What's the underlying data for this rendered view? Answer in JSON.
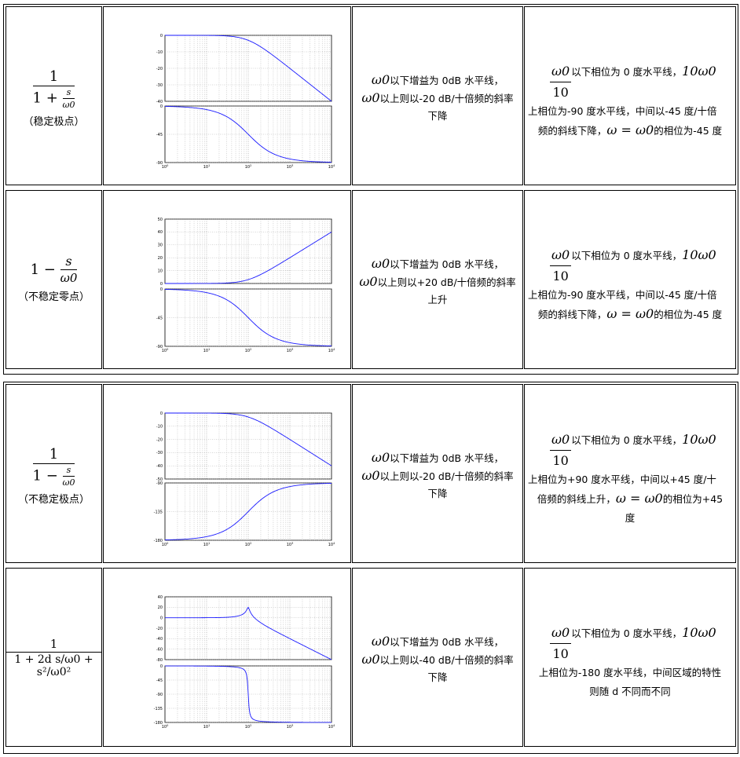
{
  "rows": [
    {
      "tf_num": "1",
      "tf_den_prefix": "1 +",
      "tf_den_s": "s",
      "tf_den_w": "ω0",
      "note": "（稳定极点）",
      "gain_line1": "以下增益为 0dB 水平线，",
      "gain_line2": "以上则以-20 dB/十倍频的斜率",
      "gain_line3": "下降",
      "phase_head": "以下相位为 0 度水平线，",
      "phase_line1": "上相位为-90 度水平线，中间以-45 度/十倍",
      "phase_line2": "频的斜线下降，",
      "phase_tail": "的相位为-45 度",
      "plot": {
        "top_ticks": [
          "0",
          "-10",
          "-20",
          "-30",
          "-40"
        ],
        "bottom_ticks": [
          "0",
          "-45",
          "-90"
        ],
        "x_ticks": [
          "10^0",
          "10^1",
          "10^2",
          "10^3",
          "10^4"
        ]
      }
    },
    {
      "tf_num": "s",
      "tf_prefix": "1 −",
      "tf_den_w": "ω0",
      "note": "（不稳定零点）",
      "gain_line1": "以下增益为 0dB 水平线，",
      "gain_line2": "以上则以+20 dB/十倍频的斜率",
      "gain_line3": "上升",
      "phase_head": "以下相位为 0 度水平线，",
      "phase_line1": "上相位为-90 度水平线，中间以-45 度/十倍",
      "phase_line2": "频的斜线下降，",
      "phase_tail": "的相位为-45 度",
      "plot": {
        "top_ticks": [
          "50",
          "40",
          "30",
          "20",
          "10",
          "0"
        ],
        "bottom_ticks": [
          "0",
          "-45",
          "-90"
        ],
        "x_ticks": [
          "10^0",
          "10^1",
          "10^2",
          "10^3",
          "10^4"
        ]
      }
    },
    {
      "tf_num": "1",
      "tf_den_prefix": "1 −",
      "tf_den_s": "s",
      "tf_den_w": "ω0",
      "note": "（不稳定极点）",
      "gain_line1": "以下增益为 0dB 水平线，",
      "gain_line2": "以上则以-20 dB/十倍频的斜率",
      "gain_line3": "下降",
      "phase_head": "以下相位为 0 度水平线，",
      "phase_line1": "上相位为+90 度水平线，中间以+45 度/十",
      "phase_line2": "倍频的斜线上升，",
      "phase_tail": "的相位为+45",
      "phase_line3": "度",
      "plot": {
        "top_ticks": [
          "0",
          "-10",
          "-20",
          "-30",
          "-40",
          "-50"
        ],
        "bottom_ticks": [
          "-90",
          "-135",
          "-180"
        ],
        "x_ticks": [
          "10^0",
          "10^1",
          "10^2",
          "10^3",
          "10^4"
        ]
      }
    },
    {
      "tf_num": "1",
      "tf_den": "1 + 2d s/ω0 + s²/ω0²",
      "note": "",
      "gain_line1": "以下增益为 0dB 水平线，",
      "gain_line2": "以上则以-40 dB/十倍频的斜率",
      "gain_line3": "下降",
      "phase_head": "以下相位为 0 度水平线，",
      "phase_line1": "上相位为-180 度水平线，中间区域的特性",
      "phase_line2": "则随 d 不同而不同",
      "plot": {
        "top_ticks": [
          "40",
          "20",
          "0",
          "-20",
          "-40",
          "-60",
          "-80"
        ],
        "bottom_ticks": [
          "0",
          "-45",
          "-90",
          "-135",
          "-180"
        ],
        "x_ticks": [
          "10^0",
          "10^1",
          "10^2",
          "10^3",
          "10^4"
        ]
      }
    }
  ],
  "chart_data": [
    {
      "type": "line",
      "series": [
        {
          "values_desc": "magnitude"
        },
        {
          "values_desc": "phase"
        }
      ],
      "x": [
        1,
        10,
        100,
        1000,
        10000
      ],
      "magnitude": [
        0,
        0,
        -3,
        -20,
        -40
      ],
      "phase": [
        0,
        -6,
        -45,
        -84,
        -90
      ]
    },
    {
      "type": "line",
      "x": [
        1,
        10,
        100,
        1000,
        10000
      ],
      "magnitude": [
        0,
        0,
        3,
        20,
        40
      ],
      "phase": [
        0,
        -6,
        -45,
        -84,
        -90
      ]
    },
    {
      "type": "line",
      "x": [
        1,
        10,
        100,
        1000,
        10000
      ],
      "magnitude": [
        0,
        0,
        -3,
        -20,
        -40
      ],
      "phase": [
        -180,
        -174,
        -135,
        -96,
        -90
      ]
    },
    {
      "type": "line",
      "x": [
        1,
        10,
        100,
        1000,
        10000
      ],
      "magnitude": [
        0,
        0.5,
        20,
        -40,
        -80
      ],
      "phase": [
        0,
        -1,
        -90,
        -179,
        -180
      ]
    }
  ],
  "w0": "ω0",
  "ten": "10",
  "ten_w0": "10ω0",
  "eq": "ω = ω0"
}
